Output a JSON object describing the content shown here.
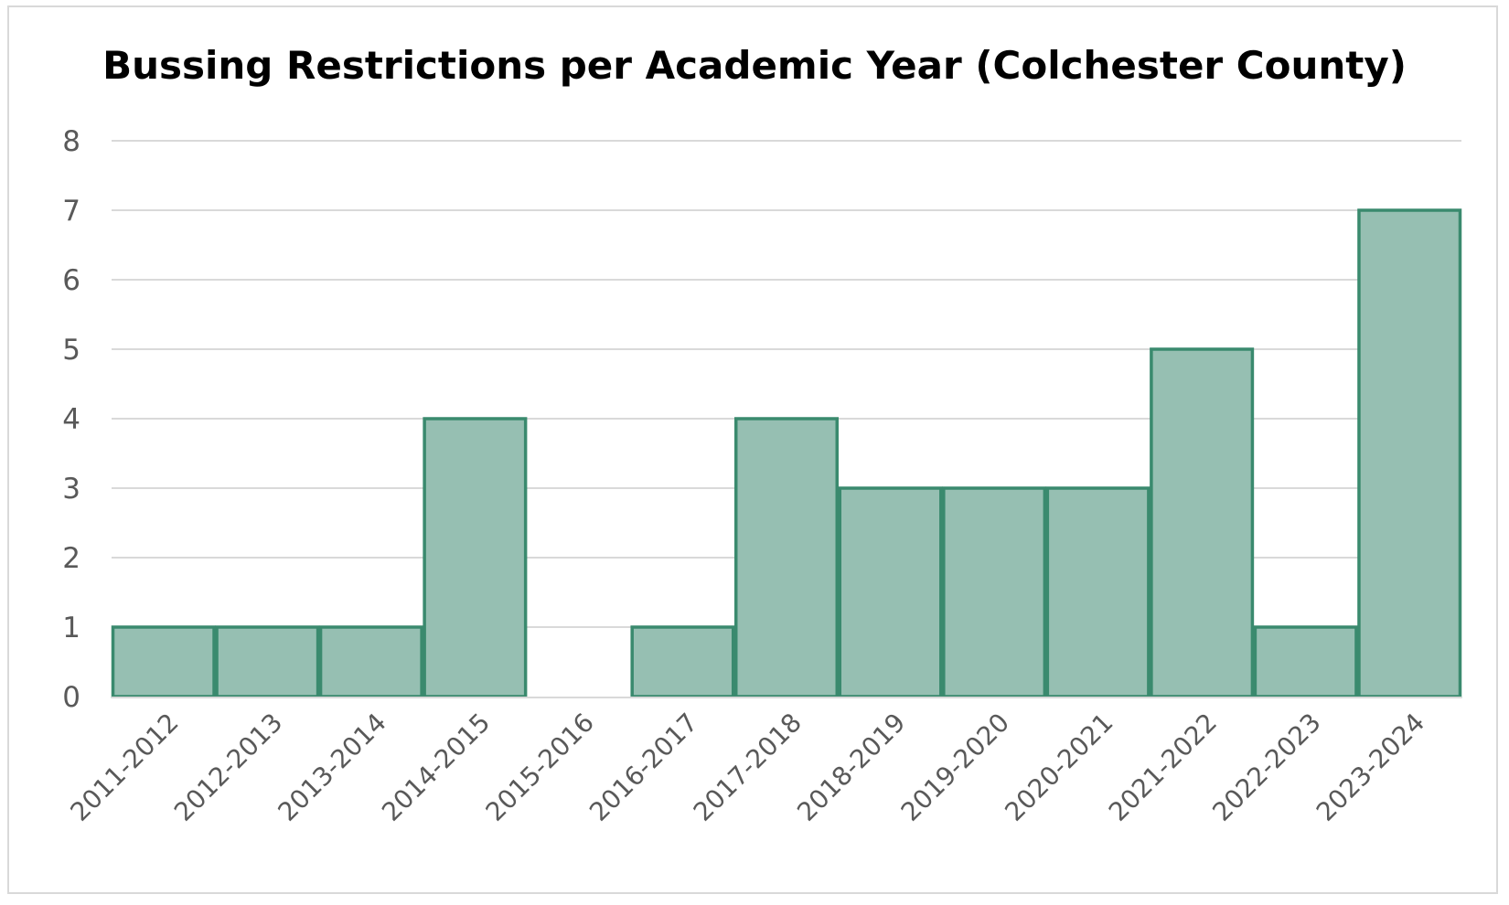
{
  "chart_data": {
    "type": "bar",
    "title": "Bussing Restrictions per Academic Year (Colchester County)",
    "xlabel": "",
    "ylabel": "",
    "categories": [
      "2011-2012",
      "2012-2013",
      "2013-2014",
      "2014-2015",
      "2015-2016",
      "2016-2017",
      "2017-2018",
      "2018-2019",
      "2019-2020",
      "2020-2021",
      "2021-2022",
      "2022-2023",
      "2023-2024"
    ],
    "values": [
      1,
      1,
      1,
      4,
      0,
      1,
      4,
      3,
      3,
      3,
      5,
      1,
      7
    ],
    "ylim": [
      0,
      8
    ],
    "yticks": [
      "0",
      "1",
      "2",
      "3",
      "4",
      "5",
      "6",
      "7",
      "8"
    ],
    "grid": true,
    "legend": "none",
    "colors": {
      "bar_fill": "#96bfb2",
      "bar_stroke": "#3a8a6e",
      "grid": "#d9d9d9",
      "axis": "#d9d9d9"
    }
  }
}
